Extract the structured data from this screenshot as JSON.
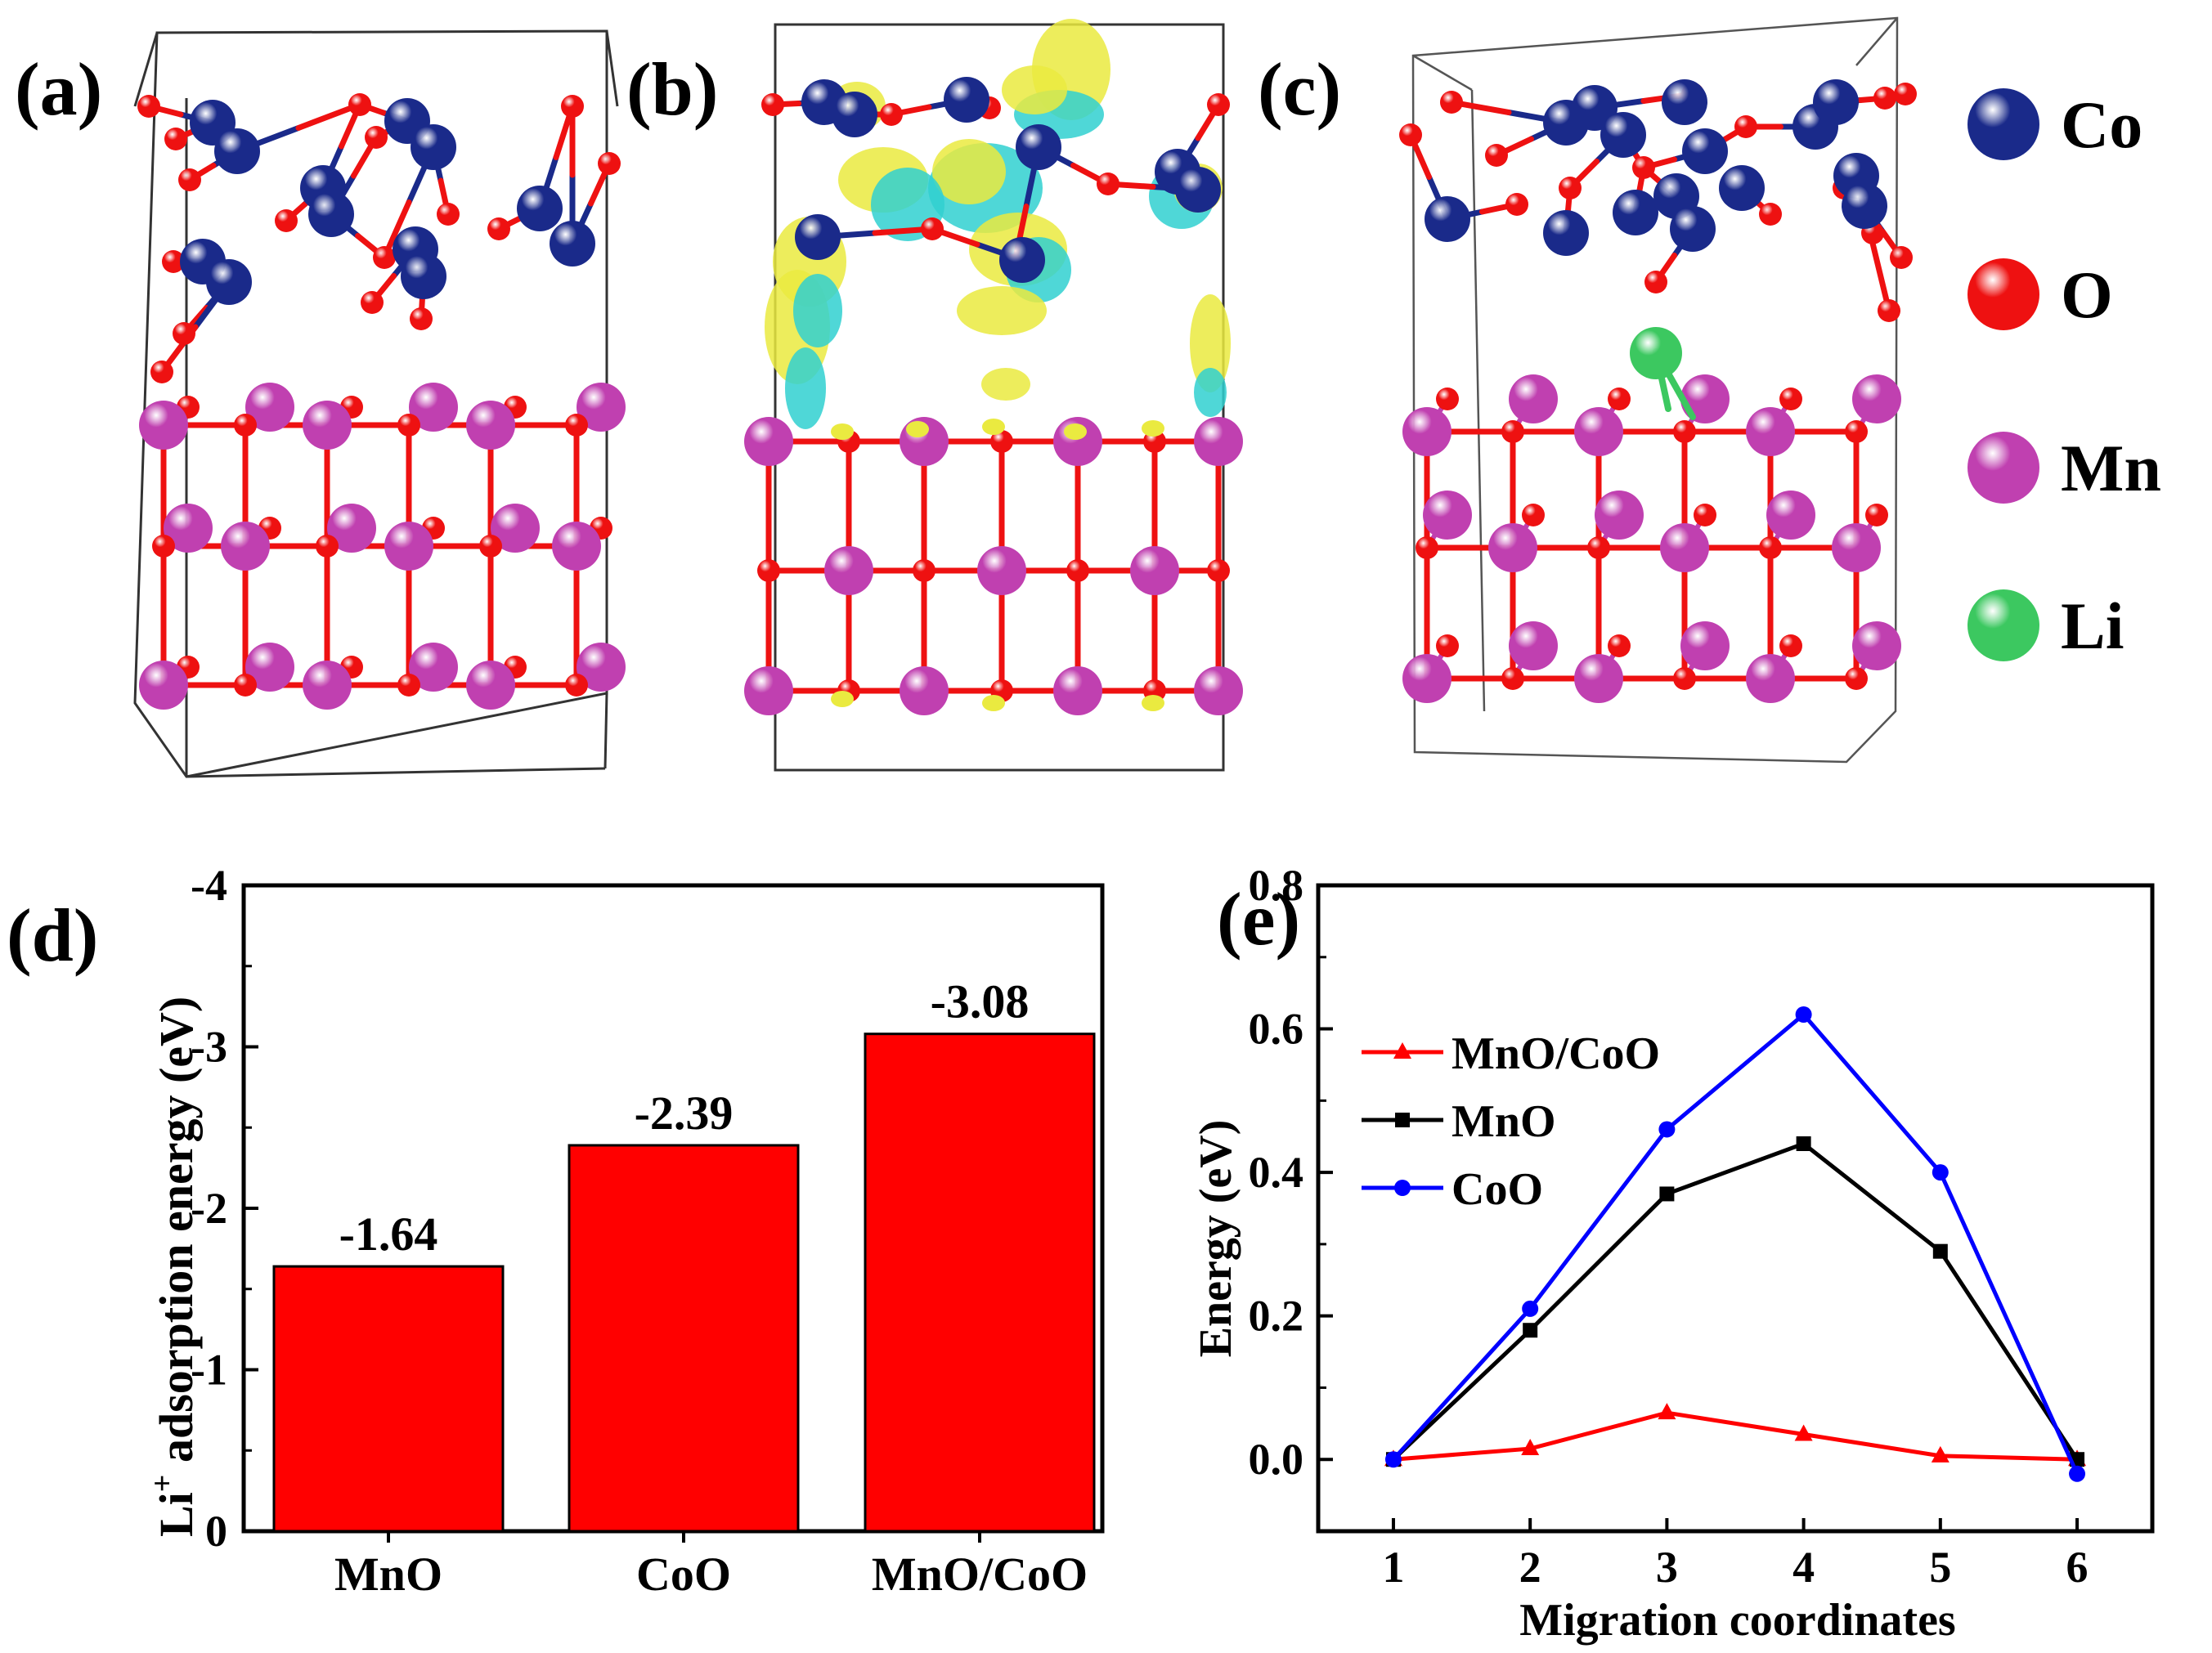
{
  "panel_labels": [
    "(a)",
    "(b)",
    "(c)",
    "(d)",
    "(e)"
  ],
  "legend_atoms": {
    "items": [
      {
        "symbol": "Co",
        "color": "#1a2a8a"
      },
      {
        "symbol": "O",
        "color": "#ee1111"
      },
      {
        "symbol": "Mn",
        "color": "#c040b0"
      },
      {
        "symbol": "Li",
        "color": "#3cc860"
      }
    ]
  },
  "colors": {
    "co": "#1a2a8a",
    "o": "#ee1111",
    "mn": "#c040b0",
    "li": "#3cc860",
    "charge_yellow": "#eaea40",
    "charge_cyan": "#30d0d0"
  },
  "chart_data": [
    {
      "id": "d",
      "type": "bar",
      "categories": [
        "MnO",
        "CoO",
        "MnO/CoO"
      ],
      "values": [
        -1.64,
        -2.39,
        -3.08
      ],
      "value_labels": [
        "-1.64",
        "-2.39",
        "-3.08"
      ],
      "bar_color": "#ff0000",
      "ylabel_main": "Li",
      "ylabel_sup": "+",
      "ylabel_rest": " adsorption energy (eV)",
      "ylim": [
        0,
        -4
      ],
      "yticks": [
        0,
        -1,
        -2,
        -3,
        -4
      ],
      "ytick_labels": [
        "0",
        "-1",
        "-2",
        "-3",
        "-4"
      ]
    },
    {
      "id": "e",
      "type": "line",
      "xlabel": "Migration coordinates",
      "ylabel": "Energy (eV)",
      "x": [
        1,
        2,
        3,
        4,
        5,
        6
      ],
      "xtick_labels": [
        "1",
        "2",
        "3",
        "4",
        "5",
        "6"
      ],
      "xlim": [
        0.45,
        6.55
      ],
      "ylim": [
        -0.1,
        0.8
      ],
      "yticks": [
        0.0,
        0.2,
        0.4,
        0.6,
        0.8
      ],
      "ytick_labels": [
        "0.0",
        "0.2",
        "0.4",
        "0.6",
        "0.8"
      ],
      "legend_position": "left",
      "series": [
        {
          "name": "MnO/CoO",
          "color": "#ff0000",
          "marker": "triangle",
          "values": [
            0.0,
            0.015,
            0.065,
            0.035,
            0.005,
            0.0
          ]
        },
        {
          "name": "MnO",
          "color": "#000000",
          "marker": "square",
          "values": [
            0.0,
            0.18,
            0.37,
            0.44,
            0.29,
            0.0
          ]
        },
        {
          "name": "CoO",
          "color": "#0000ff",
          "marker": "circle",
          "values": [
            0.0,
            0.21,
            0.46,
            0.62,
            0.4,
            -0.02
          ]
        }
      ]
    }
  ]
}
